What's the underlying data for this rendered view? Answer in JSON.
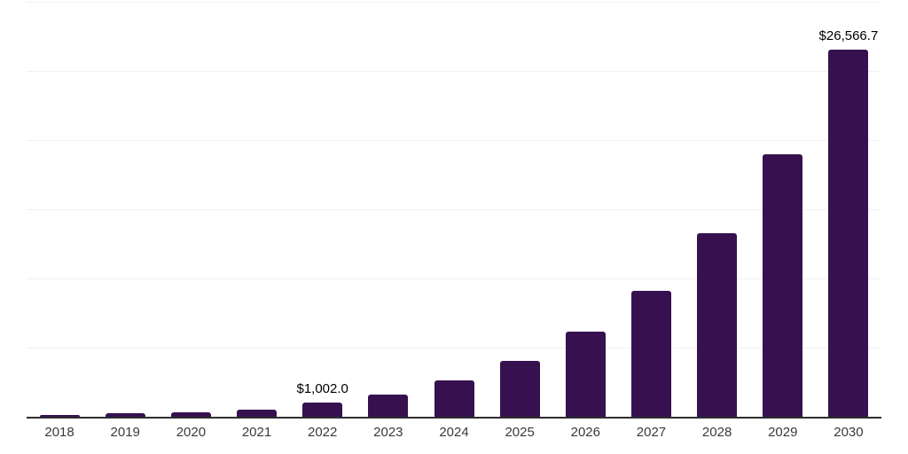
{
  "chart_data": {
    "type": "bar",
    "title": "",
    "xlabel": "",
    "ylabel": "",
    "categories": [
      "2018",
      "2019",
      "2020",
      "2021",
      "2022",
      "2023",
      "2024",
      "2025",
      "2026",
      "2027",
      "2028",
      "2029",
      "2030"
    ],
    "values": [
      150,
      240,
      300,
      530,
      1002.0,
      1600,
      2610,
      4020,
      6150,
      9080,
      13270,
      19000,
      26566.7
    ],
    "data_labels": {
      "2022": "$1,002.0",
      "2030": "$26,566.7"
    },
    "ylim": [
      0,
      30000
    ],
    "gridline_step": 5000,
    "grid": "horizontal-only",
    "legend_position": "none",
    "y_axis_tick_labels_visible": false,
    "bar_color": "#37114f",
    "axis_line_color": "#2e2e2e",
    "gridline_color": "#f1f1f1",
    "tick_label_color": "#3a3a3a",
    "data_label_color": "#000000"
  }
}
